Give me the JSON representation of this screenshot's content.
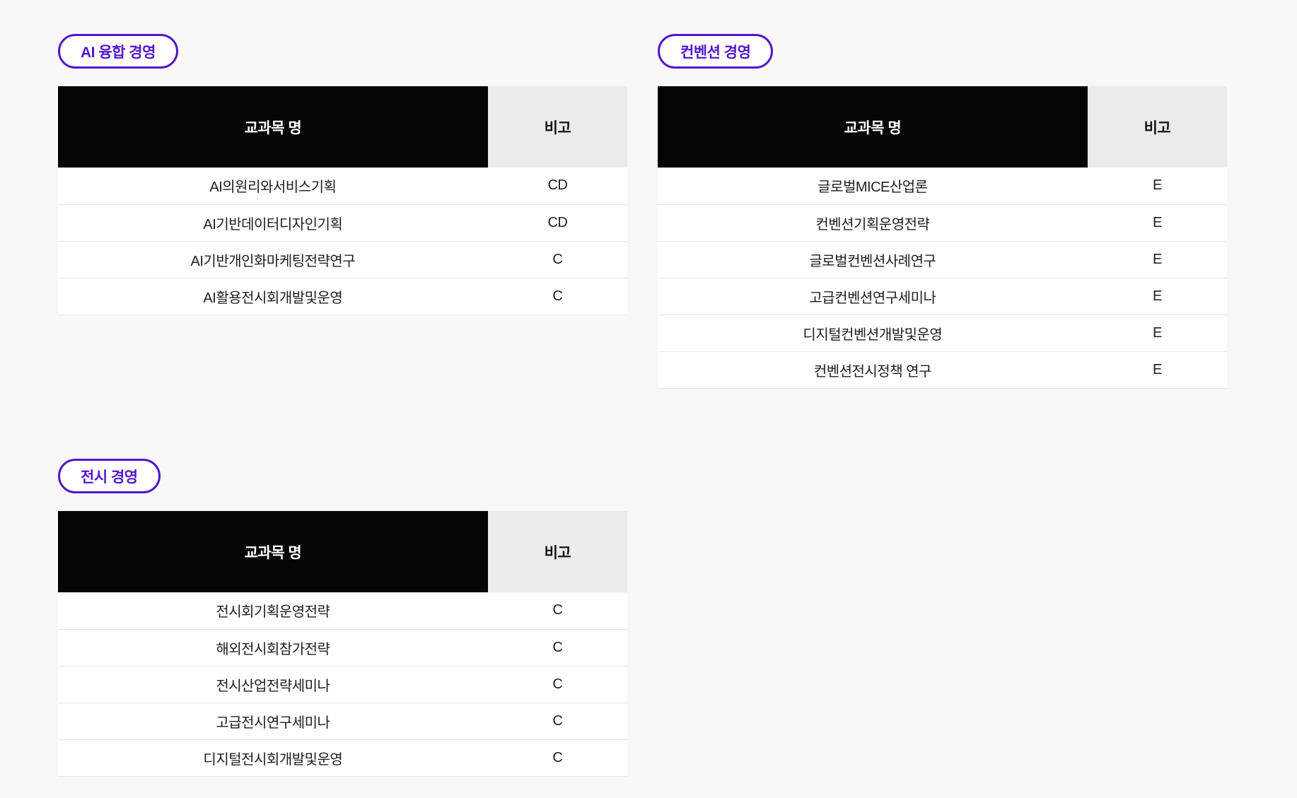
{
  "page": {
    "background": "#f8f8f9"
  },
  "colors": {
    "accent_purple": "#5217cd",
    "header_black_bg": "#050505",
    "header_black_text": "#ffffff",
    "note_header_bg": "#ebebec",
    "row_bg": "#ffffff",
    "row_border": "#e8e8e8"
  },
  "sections": [
    {
      "badge": "AI 융합 경영",
      "columns": [
        "교과목 명",
        "비고"
      ],
      "rows": [
        {
          "name": "AI의원리와서비스기획",
          "note": "CD"
        },
        {
          "name": "AI기반데이터디자인기획",
          "note": "CD"
        },
        {
          "name": "AI기반개인화마케팅전략연구",
          "note": "C"
        },
        {
          "name": "AI활용전시회개발및운영",
          "note": "C"
        }
      ]
    },
    {
      "badge": "컨벤션 경영",
      "columns": [
        "교과목 명",
        "비고"
      ],
      "rows": [
        {
          "name": "글로벌MICE산업론",
          "note": "E"
        },
        {
          "name": "컨벤션기획운영전략",
          "note": "E"
        },
        {
          "name": "글로벌컨벤션사례연구",
          "note": "E"
        },
        {
          "name": "고급컨벤션연구세미나",
          "note": "E"
        },
        {
          "name": "디지털컨벤션개발및운영",
          "note": "E"
        },
        {
          "name": "컨벤션전시정책 연구",
          "note": "E"
        }
      ]
    },
    {
      "badge": "전시 경영",
      "columns": [
        "교과목 명",
        "비고"
      ],
      "rows": [
        {
          "name": "전시회기획운영전략",
          "note": "C"
        },
        {
          "name": "해외전시회참가전략",
          "note": "C"
        },
        {
          "name": "전시산업전략세미나",
          "note": "C"
        },
        {
          "name": "고급전시연구세미나",
          "note": "C"
        },
        {
          "name": "디지털전시회개발및운영",
          "note": "C"
        }
      ]
    }
  ]
}
